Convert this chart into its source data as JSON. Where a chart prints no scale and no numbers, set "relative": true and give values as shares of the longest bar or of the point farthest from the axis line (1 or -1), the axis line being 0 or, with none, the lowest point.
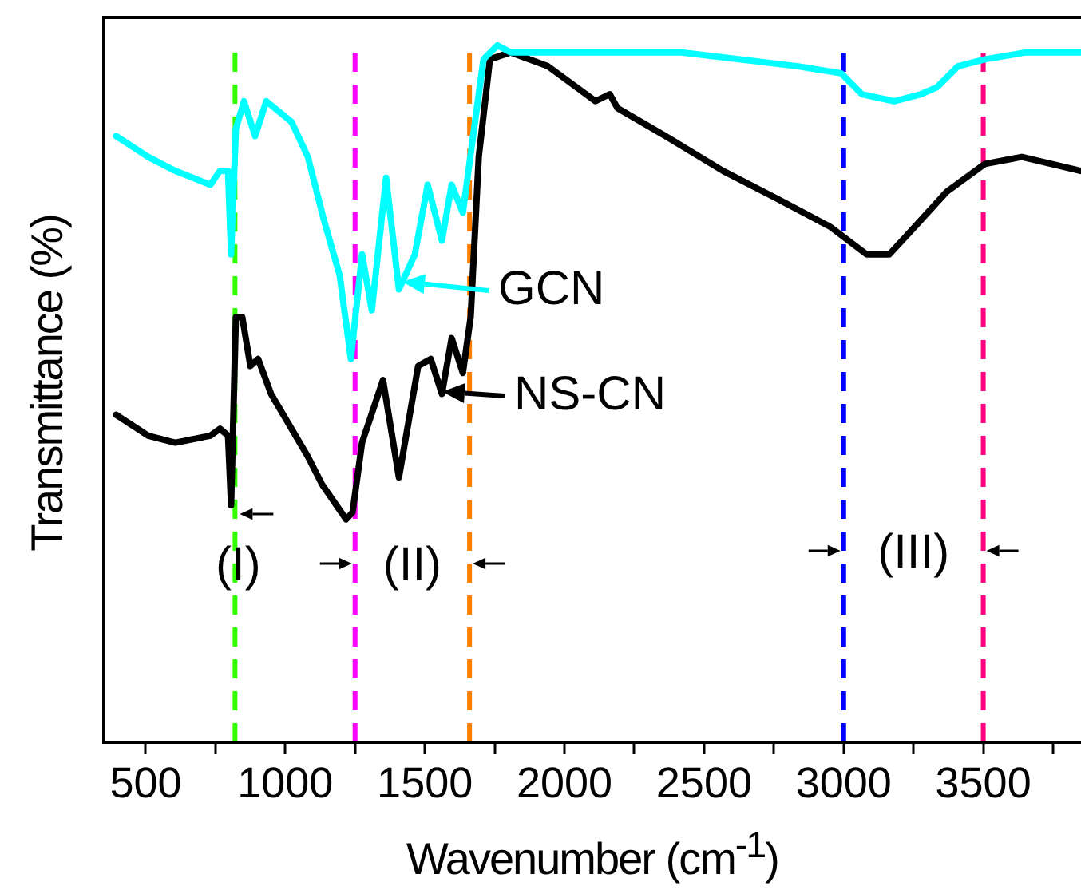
{
  "chart_data": {
    "type": "line",
    "relative": true,
    "xlabel": "Wavenumber (cm$^{-1}$)",
    "ylabel": "Transmittance (%)",
    "xlim": [
      350,
      3850
    ],
    "xticks": [
      500,
      {
        "value": 750,
        "label": null
      },
      1000,
      {
        "value": 1250,
        "label": null
      },
      1500,
      {
        "value": 1750,
        "label": null
      },
      2000,
      {
        "value": 2250,
        "label": null
      },
      2500,
      {
        "value": 2750,
        "label": null
      },
      3000,
      {
        "value": 3250,
        "label": null
      },
      3500,
      {
        "value": 3750,
        "label": null
      }
    ],
    "grid": false,
    "legend": "center",
    "marker": "none",
    "line_style": "solid",
    "tick_labels": "x",
    "series": [
      {
        "name": "GCN",
        "color": "#00ffff",
        "x": [
          394,
          509,
          606,
          732,
          766,
          795,
          806,
          823,
          852,
          892,
          932,
          1023,
          1081,
          1138,
          1195,
          1235,
          1275,
          1310,
          1361,
          1407,
          1464,
          1510,
          1561,
          1596,
          1636,
          1676,
          1710,
          1760,
          1807,
          2035,
          2419,
          2837,
          2991,
          3065,
          3180,
          3277,
          3334,
          3409,
          3506,
          3655,
          3849
        ],
        "values": [
          0.87,
          0.84,
          0.82,
          0.8,
          0.82,
          0.82,
          0.7,
          0.88,
          0.92,
          0.87,
          0.92,
          0.89,
          0.84,
          0.75,
          0.67,
          0.55,
          0.7,
          0.62,
          0.81,
          0.65,
          0.7,
          0.8,
          0.72,
          0.8,
          0.76,
          0.88,
          0.98,
          1,
          0.99,
          0.99,
          0.99,
          0.97,
          0.96,
          0.93,
          0.92,
          0.93,
          0.94,
          0.97,
          0.98,
          0.99,
          0.99
        ]
      },
      {
        "name": "NS-CN",
        "color": "#000000",
        "x": [
          394,
          509,
          606,
          732,
          766,
          795,
          806,
          823,
          846,
          875,
          903,
          949,
          1081,
          1132,
          1218,
          1241,
          1275,
          1350,
          1407,
          1476,
          1521,
          1561,
          1596,
          1636,
          1664,
          1693,
          1733,
          1807,
          1941,
          2111,
          2162,
          2190,
          2362,
          2568,
          2762,
          2951,
          3083,
          3163,
          3255,
          3369,
          3506,
          3638,
          3849
        ],
        "values": [
          0.47,
          0.44,
          0.43,
          0.44,
          0.45,
          0.44,
          0.34,
          0.61,
          0.61,
          0.54,
          0.55,
          0.5,
          0.41,
          0.37,
          0.32,
          0.33,
          0.43,
          0.52,
          0.38,
          0.54,
          0.55,
          0.5,
          0.58,
          0.53,
          0.61,
          0.84,
          0.98,
          0.99,
          0.97,
          0.92,
          0.93,
          0.91,
          0.87,
          0.82,
          0.78,
          0.74,
          0.7,
          0.7,
          0.74,
          0.79,
          0.83,
          0.84,
          0.82
        ]
      }
    ],
    "ref_lines": [
      {
        "axis": "x",
        "value": 820,
        "color": "#33ff00",
        "line_style": "dashed"
      },
      {
        "axis": "x",
        "value": 1250,
        "color": "#ff00ff",
        "line_style": "dashed"
      },
      {
        "axis": "x",
        "value": 1660,
        "color": "#ff8000",
        "line_style": "dashed"
      },
      {
        "axis": "x",
        "value": 3000,
        "color": "#0000ff",
        "line_style": "dashed"
      },
      {
        "axis": "x",
        "value": 3500,
        "color": "#ff0080",
        "line_style": "dashed"
      }
    ],
    "annotations": [
      "(I)",
      "(II)",
      "(III)"
    ]
  }
}
